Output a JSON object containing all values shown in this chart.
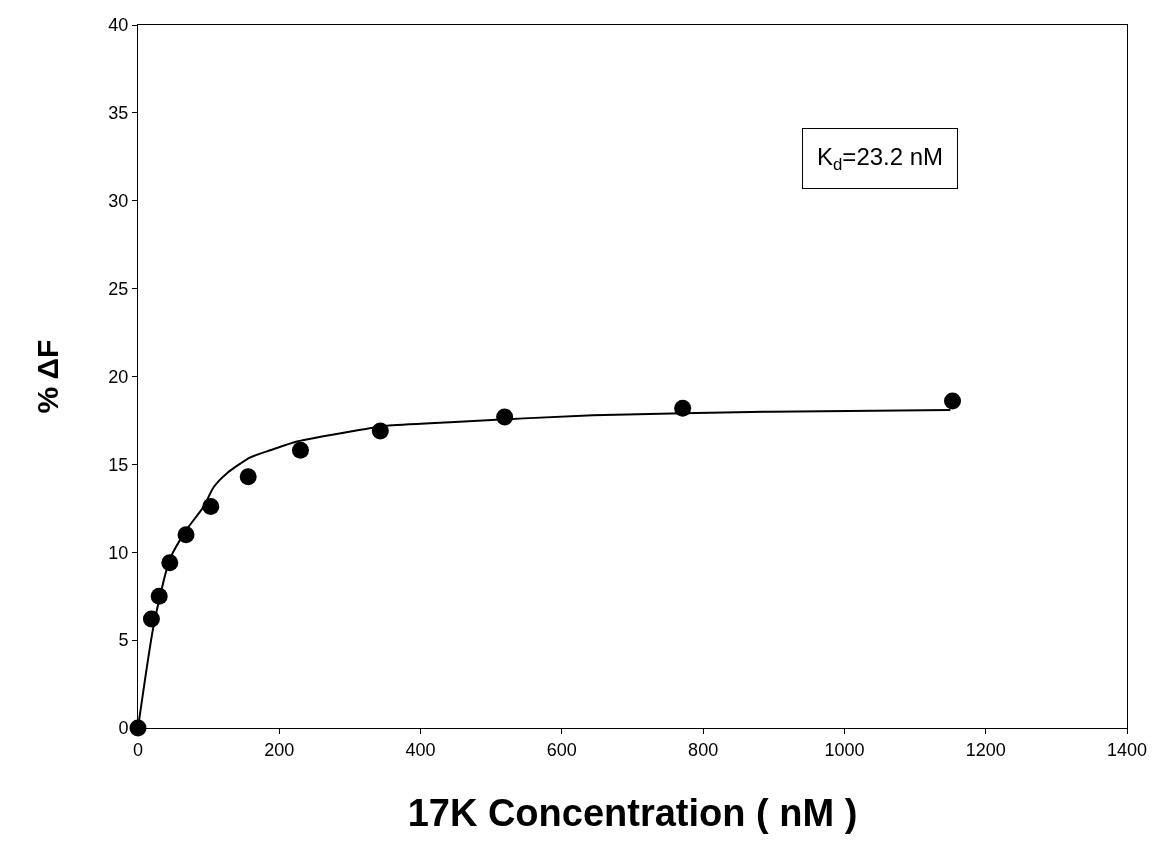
{
  "chart_data": {
    "type": "scatter",
    "xlabel": "17K Concentration ( nM )",
    "ylabel": "% ΔF",
    "annotations": [
      "K$_{d}$=23.2 nM"
    ],
    "series": [
      {
        "color": "#000000",
        "marker": "circle",
        "x": [
          0,
          19,
          30,
          45,
          68,
          103,
          156,
          230,
          343,
          519,
          771,
          1153
        ],
        "values": [
          0,
          6.2,
          7.5,
          9.4,
          11.0,
          12.6,
          14.3,
          15.8,
          16.9,
          17.7,
          18.2,
          18.6
        ]
      },
      {
        "type": "line",
        "color": "#000000",
        "marker": "none",
        "line_style": "solid",
        "x": [
          0,
          22,
          45,
          69,
          93,
          107,
          126,
          159,
          187,
          225,
          305,
          352,
          442,
          644,
          897,
          1150
        ],
        "values": [
          0,
          5.8,
          9.6,
          11.3,
          12.6,
          13.7,
          14.5,
          15.4,
          15.8,
          16.3,
          16.9,
          17.2,
          17.4,
          17.8,
          18.0,
          18.1
        ]
      }
    ],
    "xlim": [
      0,
      1400
    ],
    "xticks": [
      0,
      200,
      400,
      600,
      800,
      1000,
      1200,
      1400
    ],
    "ylim": [
      0,
      40
    ],
    "yticks": [
      0,
      5,
      10,
      15,
      20,
      25,
      30,
      35,
      40
    ]
  }
}
